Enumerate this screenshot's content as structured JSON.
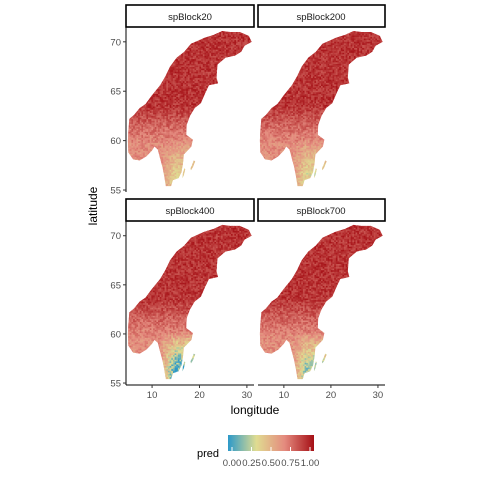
{
  "map": {
    "facets": [
      {
        "title": "spBlock20",
        "variant": 0.0
      },
      {
        "title": "spBlock200",
        "variant": 0.15
      },
      {
        "title": "spBlock400",
        "variant": 1.0
      },
      {
        "title": "spBlock700",
        "variant": 0.55
      }
    ],
    "xlabel": "longitude",
    "ylabel": "latitude",
    "x_ticks": [
      10,
      20,
      30
    ],
    "y_ticks": [
      55,
      60,
      65,
      70
    ],
    "xlim": [
      4.5,
      31.5
    ],
    "ylim": [
      54.8,
      71.5
    ],
    "legend": {
      "title": "pred",
      "ticks": [
        "0.00",
        "0.25",
        "0.50",
        "0.75",
        "1.00"
      ],
      "colors": [
        "#2c99c9",
        "#e0dc91",
        "#e48a7e",
        "#a50f15"
      ]
    }
  }
}
